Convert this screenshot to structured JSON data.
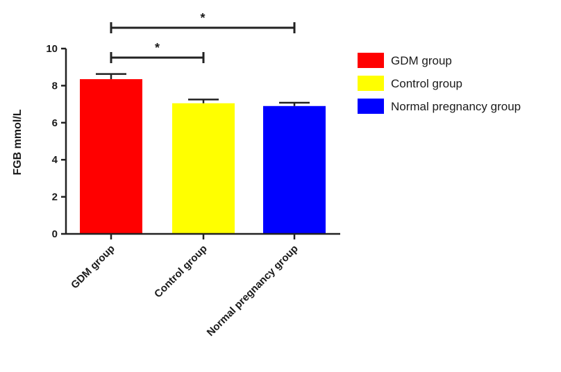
{
  "chart_data": {
    "type": "bar",
    "categories": [
      "GDM group",
      "Control group",
      "Normal pregnancy group"
    ],
    "values": [
      8.35,
      7.05,
      6.9
    ],
    "errors": [
      0.28,
      0.2,
      0.18
    ],
    "colors": [
      "#ff0000",
      "#ffff00",
      "#0000ff"
    ],
    "ylabel": "FGB  mmol/L",
    "xlabel": "",
    "ylim": [
      0,
      10
    ],
    "yticks": [
      0,
      2,
      4,
      6,
      8,
      10
    ],
    "grid": false,
    "legend": {
      "placement": "right",
      "entries": [
        "GDM group",
        "Control group",
        "Normal pregnancy group"
      ]
    },
    "significance": [
      {
        "from": 0,
        "to": 1,
        "label": "*"
      },
      {
        "from": 0,
        "to": 2,
        "label": "*"
      }
    ]
  }
}
